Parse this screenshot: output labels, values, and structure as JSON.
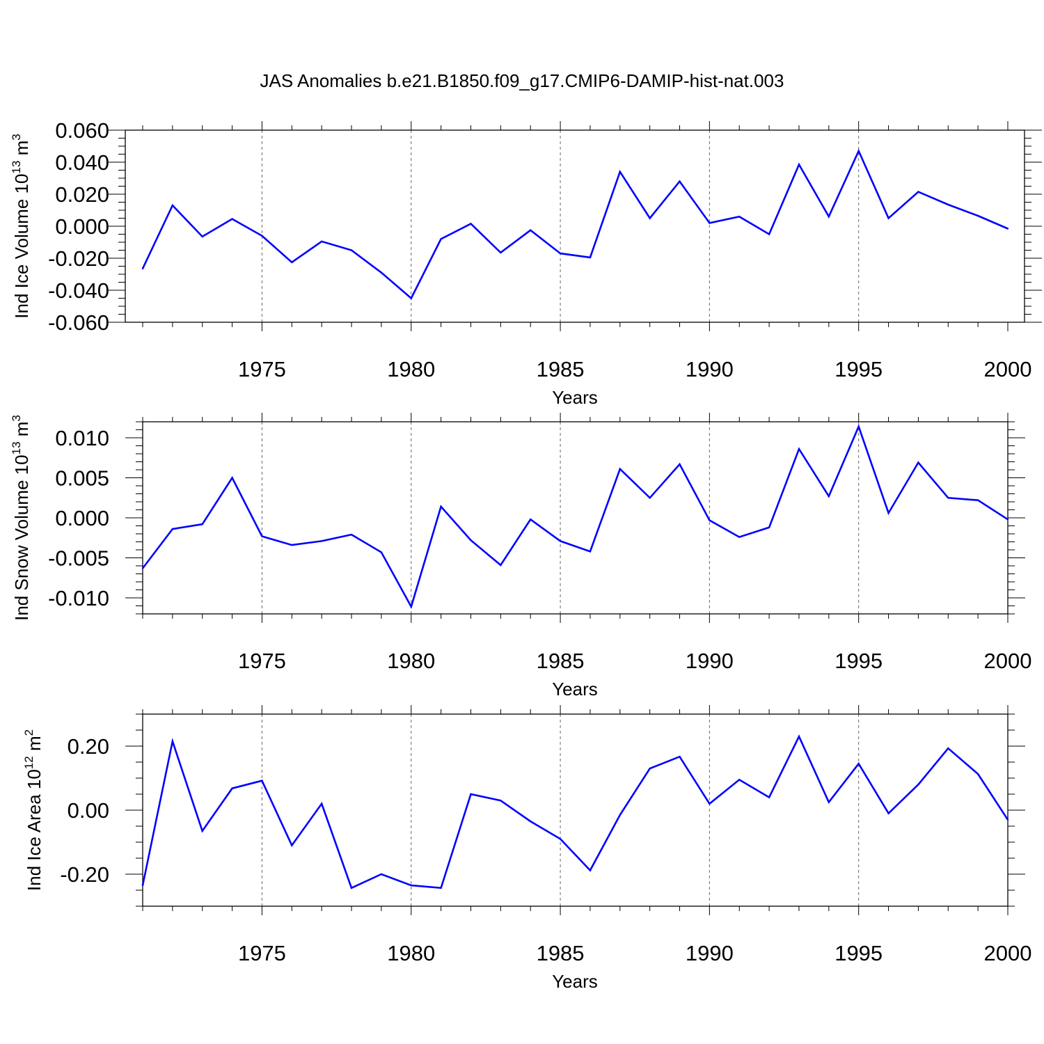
{
  "title": "JAS Anomalies b.e21.B1850.f09_g17.CMIP6-DAMIP-hist-nat.003",
  "line_color": "#0000ff",
  "chart_data": [
    {
      "type": "line",
      "ylabel_text": "Ind Ice Volume 10",
      "ylabel_exp": "13",
      "ylabel_unit": " m",
      "ylabel_unit_exp": "3",
      "xlabel": "Years",
      "xlim": [
        1971,
        2000
      ],
      "ylim": [
        -0.06,
        0.06
      ],
      "y_ticks": [
        -0.06,
        -0.04,
        -0.02,
        0.0,
        0.02,
        0.04,
        0.06
      ],
      "y_tick_labels": [
        "-0.060",
        "-0.040",
        "-0.020",
        "0.000",
        "0.020",
        "0.040",
        "0.060"
      ],
      "y_minor_step": 0.005,
      "x_ticks": [
        1975,
        1980,
        1985,
        1990,
        1995,
        2000
      ],
      "x_tick_labels": [
        "1975",
        "1980",
        "1985",
        "1990",
        "1995",
        "2000"
      ],
      "x": [
        1971,
        1972,
        1973,
        1974,
        1975,
        1976,
        1977,
        1978,
        1979,
        1980,
        1981,
        1982,
        1983,
        1984,
        1985,
        1986,
        1987,
        1988,
        1989,
        1990,
        1991,
        1992,
        1993,
        1994,
        1995,
        1996,
        1997,
        1998,
        1999,
        2000
      ],
      "values": [
        -0.0265,
        0.013,
        -0.0065,
        0.0045,
        -0.006,
        -0.0225,
        -0.0095,
        -0.015,
        -0.029,
        -0.045,
        -0.008,
        0.0015,
        -0.0165,
        -0.0025,
        -0.017,
        -0.0195,
        0.034,
        0.005,
        0.028,
        0.002,
        0.006,
        -0.005,
        0.0385,
        0.006,
        0.047,
        0.005,
        0.0215,
        0.0135,
        0.0065,
        -0.0015
      ]
    },
    {
      "type": "line",
      "ylabel_text": "Ind Snow Volume 10",
      "ylabel_exp": "13",
      "ylabel_unit": " m",
      "ylabel_unit_exp": "3",
      "xlabel": "Years",
      "xlim": [
        1971,
        2000
      ],
      "ylim": [
        -0.012,
        0.012
      ],
      "y_ticks": [
        -0.01,
        -0.005,
        0.0,
        0.005,
        0.01
      ],
      "y_tick_labels": [
        "-0.010",
        "-0.005",
        "0.000",
        "0.005",
        "0.010"
      ],
      "y_minor_step": 0.001,
      "x_ticks": [
        1975,
        1980,
        1985,
        1990,
        1995,
        2000
      ],
      "x_tick_labels": [
        "1975",
        "1980",
        "1985",
        "1990",
        "1995",
        "2000"
      ],
      "x": [
        1971,
        1972,
        1973,
        1974,
        1975,
        1976,
        1977,
        1978,
        1979,
        1980,
        1981,
        1982,
        1983,
        1984,
        1985,
        1986,
        1987,
        1988,
        1989,
        1990,
        1991,
        1992,
        1993,
        1994,
        1995,
        1996,
        1997,
        1998,
        1999,
        2000
      ],
      "values": [
        -0.0063,
        -0.0014,
        -0.0008,
        0.005,
        -0.0023,
        -0.0034,
        -0.0029,
        -0.0021,
        -0.0043,
        -0.0111,
        0.0014,
        -0.0028,
        -0.0059,
        -0.0002,
        -0.0029,
        -0.0042,
        0.0061,
        0.0025,
        0.0067,
        -0.0003,
        -0.0024,
        -0.0012,
        0.0086,
        0.0027,
        0.0114,
        0.0006,
        0.0069,
        0.0025,
        0.0022,
        -0.0002
      ]
    },
    {
      "type": "line",
      "ylabel_text": "Ind Ice Area 10",
      "ylabel_exp": "12",
      "ylabel_unit": " m",
      "ylabel_unit_exp": "2",
      "xlabel": "Years",
      "xlim": [
        1971,
        2000
      ],
      "ylim": [
        -0.3,
        0.3
      ],
      "y_ticks": [
        -0.2,
        0.0,
        0.2
      ],
      "y_tick_labels": [
        "-0.20",
        "0.00",
        "0.20"
      ],
      "y_minor_step": 0.05,
      "x_ticks": [
        1975,
        1980,
        1985,
        1990,
        1995,
        2000
      ],
      "x_tick_labels": [
        "1975",
        "1980",
        "1985",
        "1990",
        "1995",
        "2000"
      ],
      "x": [
        1971,
        1972,
        1973,
        1974,
        1975,
        1976,
        1977,
        1978,
        1979,
        1980,
        1981,
        1982,
        1983,
        1984,
        1985,
        1986,
        1987,
        1988,
        1989,
        1990,
        1991,
        1992,
        1993,
        1994,
        1995,
        1996,
        1997,
        1998,
        1999,
        2000
      ],
      "values": [
        -0.235,
        0.215,
        -0.065,
        0.068,
        0.092,
        -0.11,
        0.02,
        -0.243,
        -0.2,
        -0.235,
        -0.243,
        0.05,
        0.03,
        -0.035,
        -0.09,
        -0.188,
        -0.015,
        0.13,
        0.167,
        0.02,
        0.095,
        0.04,
        0.23,
        0.025,
        0.145,
        -0.01,
        0.08,
        0.193,
        0.113,
        -0.03
      ]
    }
  ]
}
